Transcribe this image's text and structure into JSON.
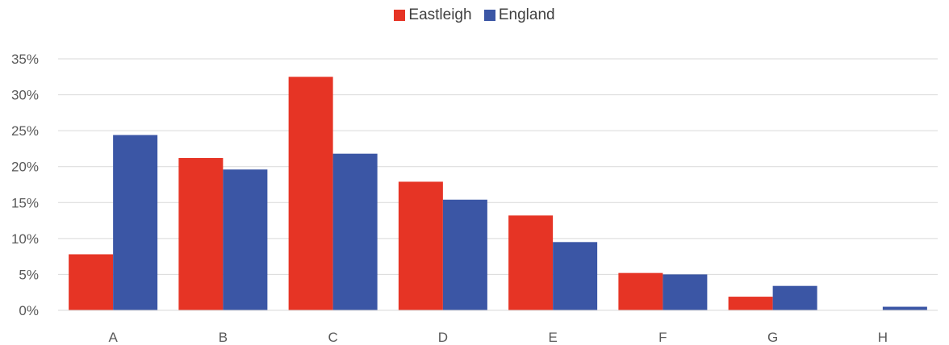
{
  "chart_data": {
    "type": "bar",
    "categories": [
      "A",
      "B",
      "C",
      "D",
      "E",
      "F",
      "G",
      "H"
    ],
    "series": [
      {
        "name": "Eastleigh",
        "color": "#e63425",
        "values": [
          7.8,
          21.2,
          32.5,
          17.9,
          13.2,
          5.2,
          1.9,
          0.0
        ]
      },
      {
        "name": "England",
        "color": "#3b56a5",
        "values": [
          24.4,
          19.6,
          21.8,
          15.4,
          9.5,
          5.0,
          3.4,
          0.5
        ]
      }
    ],
    "ylim": [
      0,
      35
    ],
    "yticks": [
      "0%",
      "5%",
      "10%",
      "15%",
      "20%",
      "25%",
      "30%",
      "35%"
    ],
    "grid": true,
    "legend_position": "top-center"
  }
}
